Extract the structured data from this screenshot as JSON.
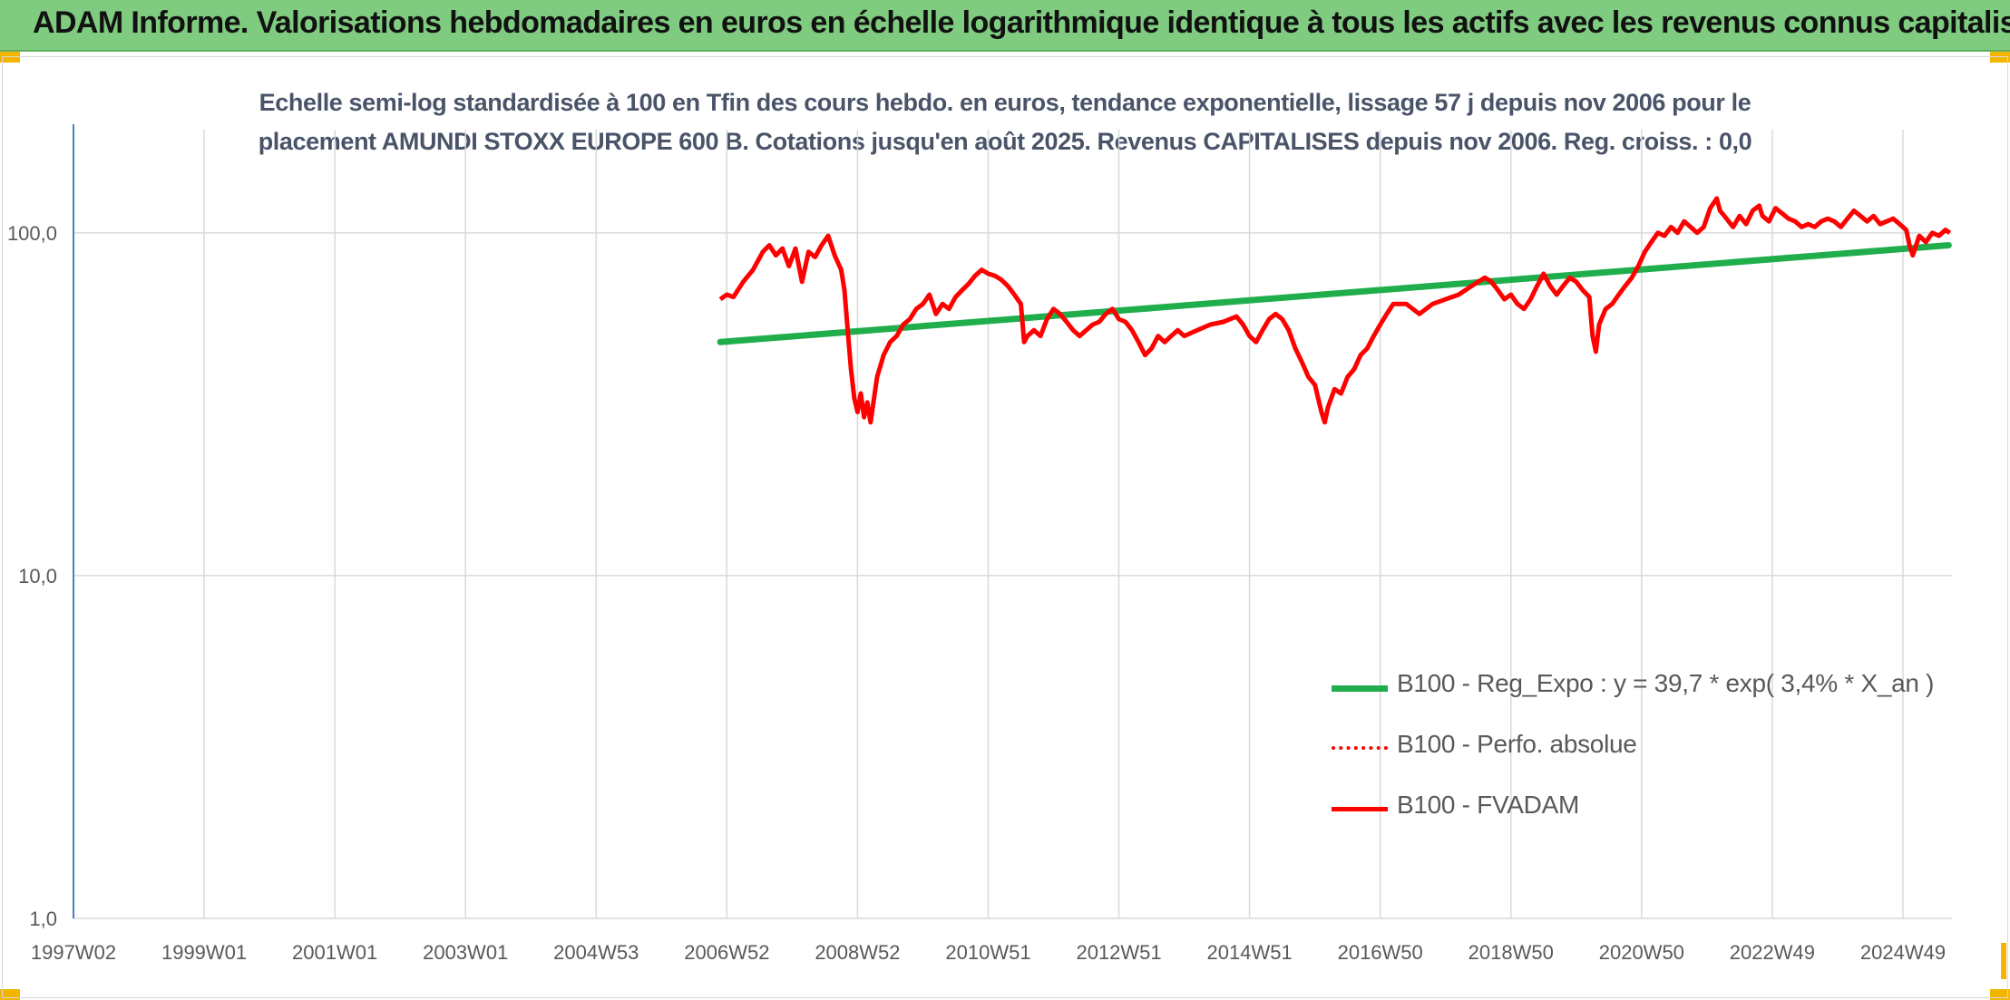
{
  "banner": {
    "title": "ADAM Informe. Valorisations hebdomadaires en euros en échelle logarithmique identique à tous les actifs avec les revenus connus capitalisés"
  },
  "colors": {
    "banner_bg": "#7fcb7f",
    "trend": "#1fae4b",
    "perf": "#ff0000",
    "fvadam": "#ff0000",
    "axis_text": "#595959",
    "grid": "#d9d9d9"
  },
  "chart_data": {
    "type": "line",
    "title_lines": [
      "Echelle semi-log standardisée à 100 en Tfin des cours hebdo. en euros, tendance exponentielle, lissage 57 j depuis nov 2006 pour le",
      "placement AMUNDI STOXX EUROPE 600 B. Cotations jusqu'en août 2025. Revenus CAPITALISES depuis nov 2006. Reg. croiss. : 0,0"
    ],
    "y_scale": "log",
    "ylim": [
      1,
      200
    ],
    "y_ticks": [
      {
        "value": 1,
        "label": "1,0"
      },
      {
        "value": 10,
        "label": "10,0"
      },
      {
        "value": 100,
        "label": "100,0"
      }
    ],
    "x_range": [
      1997.0,
      2025.75
    ],
    "x_ticks": [
      {
        "value": 1997.0,
        "label": "1997W02"
      },
      {
        "value": 1999.0,
        "label": "1999W01"
      },
      {
        "value": 2001.0,
        "label": "2001W01"
      },
      {
        "value": 2003.0,
        "label": "2003W01"
      },
      {
        "value": 2005.0,
        "label": "2004W53"
      },
      {
        "value": 2007.0,
        "label": "2006W52"
      },
      {
        "value": 2009.0,
        "label": "2008W52"
      },
      {
        "value": 2011.0,
        "label": "2010W51"
      },
      {
        "value": 2013.0,
        "label": "2012W51"
      },
      {
        "value": 2015.0,
        "label": "2014W51"
      },
      {
        "value": 2017.0,
        "label": "2016W50"
      },
      {
        "value": 2019.0,
        "label": "2018W50"
      },
      {
        "value": 2021.0,
        "label": "2020W50"
      },
      {
        "value": 2023.0,
        "label": "2022W49"
      },
      {
        "value": 2025.0,
        "label": "2024W49"
      }
    ],
    "legend_position": "bottom-right",
    "series": [
      {
        "name": "B100 - Reg_Expo : y = 39,7 * exp( 3,4% *  X_an )",
        "style": "solid-thick",
        "points": [
          [
            2006.9,
            48
          ],
          [
            2025.7,
            92
          ]
        ]
      },
      {
        "name": "B100 - Perfo. absolue",
        "style": "dotted",
        "points": []
      },
      {
        "name": "B100 - FVADAM",
        "style": "solid",
        "points": [
          [
            2006.9,
            64
          ],
          [
            2007.0,
            66
          ],
          [
            2007.1,
            65
          ],
          [
            2007.25,
            72
          ],
          [
            2007.4,
            78
          ],
          [
            2007.55,
            88
          ],
          [
            2007.65,
            92
          ],
          [
            2007.75,
            86
          ],
          [
            2007.85,
            90
          ],
          [
            2007.95,
            80
          ],
          [
            2008.05,
            90
          ],
          [
            2008.15,
            72
          ],
          [
            2008.25,
            88
          ],
          [
            2008.35,
            85
          ],
          [
            2008.45,
            92
          ],
          [
            2008.55,
            98
          ],
          [
            2008.65,
            86
          ],
          [
            2008.75,
            78
          ],
          [
            2008.8,
            68
          ],
          [
            2008.85,
            52
          ],
          [
            2008.9,
            40
          ],
          [
            2008.95,
            33
          ],
          [
            2009.0,
            30
          ],
          [
            2009.05,
            34
          ],
          [
            2009.1,
            29
          ],
          [
            2009.15,
            32
          ],
          [
            2009.2,
            28
          ],
          [
            2009.3,
            38
          ],
          [
            2009.4,
            44
          ],
          [
            2009.5,
            48
          ],
          [
            2009.6,
            50
          ],
          [
            2009.7,
            54
          ],
          [
            2009.8,
            56
          ],
          [
            2009.9,
            60
          ],
          [
            2010.0,
            62
          ],
          [
            2010.1,
            66
          ],
          [
            2010.2,
            58
          ],
          [
            2010.3,
            62
          ],
          [
            2010.4,
            60
          ],
          [
            2010.5,
            65
          ],
          [
            2010.6,
            68
          ],
          [
            2010.7,
            71
          ],
          [
            2010.8,
            75
          ],
          [
            2010.9,
            78
          ],
          [
            2011.0,
            76
          ],
          [
            2011.1,
            75
          ],
          [
            2011.2,
            73
          ],
          [
            2011.3,
            70
          ],
          [
            2011.4,
            66
          ],
          [
            2011.5,
            62
          ],
          [
            2011.55,
            48
          ],
          [
            2011.6,
            50
          ],
          [
            2011.7,
            52
          ],
          [
            2011.8,
            50
          ],
          [
            2011.9,
            56
          ],
          [
            2012.0,
            60
          ],
          [
            2012.1,
            58
          ],
          [
            2012.2,
            55
          ],
          [
            2012.3,
            52
          ],
          [
            2012.4,
            50
          ],
          [
            2012.5,
            52
          ],
          [
            2012.6,
            54
          ],
          [
            2012.7,
            55
          ],
          [
            2012.8,
            58
          ],
          [
            2012.9,
            60
          ],
          [
            2013.0,
            56
          ],
          [
            2013.1,
            55
          ],
          [
            2013.2,
            52
          ],
          [
            2013.3,
            48
          ],
          [
            2013.4,
            44
          ],
          [
            2013.5,
            46
          ],
          [
            2013.6,
            50
          ],
          [
            2013.7,
            48
          ],
          [
            2013.8,
            50
          ],
          [
            2013.9,
            52
          ],
          [
            2014.0,
            50
          ],
          [
            2014.2,
            52
          ],
          [
            2014.4,
            54
          ],
          [
            2014.6,
            55
          ],
          [
            2014.8,
            57
          ],
          [
            2014.9,
            54
          ],
          [
            2015.0,
            50
          ],
          [
            2015.1,
            48
          ],
          [
            2015.2,
            52
          ],
          [
            2015.3,
            56
          ],
          [
            2015.4,
            58
          ],
          [
            2015.5,
            56
          ],
          [
            2015.6,
            52
          ],
          [
            2015.7,
            46
          ],
          [
            2015.8,
            42
          ],
          [
            2015.9,
            38
          ],
          [
            2016.0,
            36
          ],
          [
            2016.1,
            30
          ],
          [
            2016.15,
            28
          ],
          [
            2016.2,
            31
          ],
          [
            2016.3,
            35
          ],
          [
            2016.4,
            34
          ],
          [
            2016.5,
            38
          ],
          [
            2016.6,
            40
          ],
          [
            2016.7,
            44
          ],
          [
            2016.8,
            46
          ],
          [
            2016.9,
            50
          ],
          [
            2017.0,
            54
          ],
          [
            2017.1,
            58
          ],
          [
            2017.2,
            62
          ],
          [
            2017.4,
            62
          ],
          [
            2017.6,
            58
          ],
          [
            2017.8,
            62
          ],
          [
            2018.0,
            64
          ],
          [
            2018.2,
            66
          ],
          [
            2018.4,
            70
          ],
          [
            2018.5,
            72
          ],
          [
            2018.6,
            74
          ],
          [
            2018.7,
            72
          ],
          [
            2018.8,
            68
          ],
          [
            2018.9,
            64
          ],
          [
            2019.0,
            66
          ],
          [
            2019.1,
            62
          ],
          [
            2019.2,
            60
          ],
          [
            2019.3,
            64
          ],
          [
            2019.4,
            70
          ],
          [
            2019.5,
            76
          ],
          [
            2019.6,
            70
          ],
          [
            2019.7,
            66
          ],
          [
            2019.8,
            70
          ],
          [
            2019.9,
            74
          ],
          [
            2020.0,
            72
          ],
          [
            2020.1,
            68
          ],
          [
            2020.2,
            65
          ],
          [
            2020.25,
            50
          ],
          [
            2020.3,
            45
          ],
          [
            2020.35,
            54
          ],
          [
            2020.45,
            60
          ],
          [
            2020.55,
            62
          ],
          [
            2020.65,
            66
          ],
          [
            2020.75,
            70
          ],
          [
            2020.85,
            74
          ],
          [
            2020.95,
            80
          ],
          [
            2021.05,
            88
          ],
          [
            2021.15,
            94
          ],
          [
            2021.25,
            100
          ],
          [
            2021.35,
            98
          ],
          [
            2021.45,
            104
          ],
          [
            2021.55,
            100
          ],
          [
            2021.65,
            108
          ],
          [
            2021.75,
            104
          ],
          [
            2021.85,
            100
          ],
          [
            2021.95,
            104
          ],
          [
            2022.05,
            118
          ],
          [
            2022.15,
            126
          ],
          [
            2022.2,
            116
          ],
          [
            2022.3,
            110
          ],
          [
            2022.4,
            104
          ],
          [
            2022.5,
            112
          ],
          [
            2022.6,
            106
          ],
          [
            2022.7,
            116
          ],
          [
            2022.8,
            120
          ],
          [
            2022.85,
            112
          ],
          [
            2022.95,
            108
          ],
          [
            2023.05,
            118
          ],
          [
            2023.15,
            114
          ],
          [
            2023.25,
            110
          ],
          [
            2023.35,
            108
          ],
          [
            2023.45,
            104
          ],
          [
            2023.55,
            106
          ],
          [
            2023.65,
            104
          ],
          [
            2023.75,
            108
          ],
          [
            2023.85,
            110
          ],
          [
            2023.95,
            108
          ],
          [
            2024.05,
            104
          ],
          [
            2024.15,
            110
          ],
          [
            2024.25,
            116
          ],
          [
            2024.35,
            112
          ],
          [
            2024.45,
            108
          ],
          [
            2024.55,
            112
          ],
          [
            2024.65,
            106
          ],
          [
            2024.75,
            108
          ],
          [
            2024.85,
            110
          ],
          [
            2024.95,
            106
          ],
          [
            2025.05,
            102
          ],
          [
            2025.1,
            92
          ],
          [
            2025.15,
            86
          ],
          [
            2025.25,
            98
          ],
          [
            2025.35,
            94
          ],
          [
            2025.45,
            100
          ],
          [
            2025.55,
            98
          ],
          [
            2025.65,
            102
          ],
          [
            2025.72,
            100
          ]
        ]
      }
    ]
  }
}
